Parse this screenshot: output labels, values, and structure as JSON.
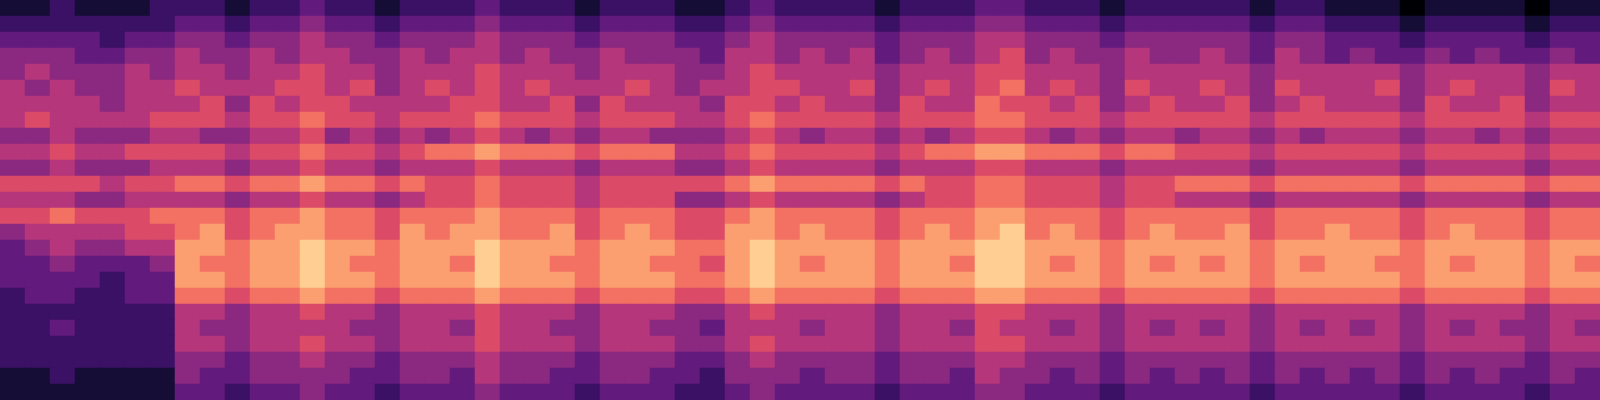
{
  "chart_data": {
    "type": "heatmap",
    "tick_labels": false,
    "grid": false,
    "value_range": [
      0,
      10
    ],
    "cells": [
      [
        1,
        1,
        2,
        1,
        1,
        1,
        2,
        2,
        2,
        1,
        2,
        2,
        3,
        2,
        2,
        1,
        2,
        2,
        2,
        3,
        2,
        2,
        2,
        1,
        2,
        2,
        2,
        1,
        1,
        2,
        3,
        2,
        2,
        2,
        2,
        1,
        2,
        2,
        2,
        3,
        3,
        2,
        2,
        2,
        1,
        2,
        2,
        2,
        2,
        2,
        1,
        2,
        2,
        1,
        1,
        1,
        0,
        1,
        1,
        1,
        1,
        0,
        1,
        1
      ],
      [
        2,
        2,
        2,
        2,
        2,
        2,
        2,
        3,
        3,
        2,
        3,
        3,
        4,
        3,
        3,
        2,
        3,
        3,
        3,
        4,
        3,
        3,
        3,
        2,
        3,
        3,
        3,
        2,
        2,
        3,
        4,
        3,
        3,
        3,
        3,
        2,
        3,
        3,
        3,
        4,
        4,
        3,
        3,
        3,
        2,
        3,
        3,
        3,
        3,
        3,
        2,
        3,
        3,
        2,
        2,
        2,
        1,
        2,
        2,
        2,
        2,
        1,
        2,
        2
      ],
      [
        3,
        3,
        3,
        3,
        2,
        3,
        3,
        4,
        4,
        3,
        4,
        4,
        5,
        4,
        4,
        3,
        4,
        4,
        4,
        5,
        4,
        4,
        4,
        3,
        4,
        4,
        4,
        3,
        3,
        4,
        5,
        4,
        4,
        4,
        4,
        3,
        4,
        4,
        4,
        5,
        5,
        4,
        4,
        4,
        3,
        4,
        4,
        4,
        4,
        4,
        3,
        4,
        4,
        3,
        3,
        3,
        2,
        3,
        3,
        3,
        3,
        2,
        3,
        3
      ],
      [
        4,
        4,
        4,
        3,
        3,
        4,
        4,
        5,
        4,
        4,
        5,
        4,
        5,
        5,
        4,
        4,
        5,
        4,
        5,
        5,
        4,
        5,
        4,
        4,
        5,
        4,
        4,
        4,
        3,
        5,
        5,
        4,
        5,
        4,
        5,
        3,
        4,
        5,
        4,
        5,
        6,
        4,
        5,
        4,
        4,
        5,
        4,
        4,
        5,
        4,
        3,
        5,
        4,
        3,
        4,
        3,
        3,
        4,
        3,
        4,
        3,
        3,
        4,
        3
      ],
      [
        4,
        5,
        4,
        4,
        4,
        5,
        4,
        5,
        5,
        4,
        5,
        5,
        6,
        5,
        5,
        4,
        5,
        5,
        5,
        6,
        5,
        5,
        5,
        4,
        5,
        5,
        5,
        4,
        4,
        5,
        6,
        5,
        5,
        5,
        5,
        4,
        5,
        5,
        5,
        6,
        6,
        5,
        5,
        5,
        4,
        5,
        5,
        5,
        5,
        5,
        4,
        5,
        5,
        5,
        5,
        5,
        4,
        5,
        5,
        5,
        5,
        4,
        5,
        5
      ],
      [
        5,
        4,
        5,
        4,
        4,
        5,
        5,
        6,
        5,
        5,
        5,
        6,
        6,
        5,
        6,
        4,
        5,
        6,
        5,
        6,
        5,
        6,
        5,
        5,
        5,
        6,
        5,
        4,
        5,
        5,
        6,
        6,
        5,
        5,
        6,
        4,
        5,
        6,
        5,
        6,
        7,
        5,
        6,
        5,
        4,
        6,
        5,
        5,
        6,
        5,
        4,
        6,
        5,
        5,
        5,
        6,
        4,
        5,
        6,
        5,
        5,
        4,
        6,
        5
      ],
      [
        5,
        5,
        5,
        5,
        4,
        5,
        5,
        5,
        6,
        4,
        6,
        5,
        6,
        6,
        5,
        5,
        5,
        5,
        6,
        6,
        5,
        5,
        6,
        4,
        6,
        5,
        5,
        5,
        4,
        6,
        6,
        5,
        6,
        5,
        5,
        4,
        6,
        5,
        5,
        7,
        6,
        6,
        5,
        6,
        4,
        5,
        6,
        5,
        5,
        6,
        4,
        5,
        6,
        5,
        5,
        5,
        4,
        6,
        5,
        5,
        6,
        4,
        5,
        5
      ],
      [
        5,
        6,
        5,
        5,
        5,
        5,
        6,
        6,
        6,
        5,
        6,
        6,
        7,
        6,
        6,
        5,
        6,
        6,
        6,
        7,
        6,
        6,
        6,
        5,
        6,
        6,
        6,
        5,
        5,
        6,
        7,
        6,
        6,
        6,
        6,
        5,
        6,
        6,
        6,
        7,
        7,
        6,
        6,
        6,
        5,
        6,
        6,
        6,
        6,
        6,
        5,
        6,
        6,
        6,
        6,
        6,
        5,
        6,
        6,
        6,
        6,
        5,
        6,
        6
      ],
      [
        4,
        4,
        5,
        4,
        4,
        4,
        5,
        5,
        4,
        4,
        5,
        5,
        6,
        4,
        5,
        4,
        5,
        4,
        5,
        6,
        5,
        4,
        5,
        4,
        5,
        5,
        4,
        4,
        4,
        5,
        6,
        5,
        4,
        5,
        5,
        4,
        5,
        4,
        5,
        6,
        6,
        5,
        4,
        5,
        4,
        5,
        5,
        4,
        5,
        5,
        4,
        5,
        4,
        5,
        5,
        5,
        4,
        5,
        5,
        4,
        5,
        4,
        5,
        5
      ],
      [
        5,
        5,
        6,
        5,
        5,
        6,
        6,
        6,
        6,
        5,
        6,
        6,
        7,
        6,
        6,
        5,
        6,
        7,
        7,
        8,
        7,
        7,
        7,
        6,
        7,
        7,
        7,
        5,
        5,
        6,
        7,
        6,
        6,
        6,
        6,
        5,
        6,
        7,
        7,
        8,
        8,
        7,
        7,
        7,
        6,
        7,
        7,
        6,
        6,
        6,
        5,
        6,
        6,
        6,
        6,
        6,
        5,
        6,
        6,
        6,
        6,
        5,
        6,
        6
      ],
      [
        4,
        4,
        5,
        4,
        4,
        4,
        5,
        5,
        5,
        4,
        5,
        5,
        6,
        5,
        5,
        4,
        5,
        5,
        5,
        6,
        5,
        5,
        5,
        4,
        5,
        5,
        5,
        4,
        4,
        5,
        6,
        5,
        5,
        5,
        5,
        4,
        5,
        5,
        5,
        6,
        6,
        5,
        5,
        5,
        4,
        5,
        5,
        5,
        5,
        5,
        4,
        5,
        5,
        5,
        5,
        5,
        4,
        5,
        5,
        5,
        5,
        4,
        5,
        5
      ],
      [
        6,
        6,
        6,
        6,
        5,
        6,
        6,
        7,
        7,
        6,
        7,
        7,
        8,
        7,
        7,
        6,
        7,
        6,
        6,
        7,
        6,
        6,
        6,
        5,
        6,
        6,
        6,
        6,
        6,
        7,
        8,
        7,
        7,
        7,
        7,
        6,
        7,
        6,
        6,
        7,
        7,
        6,
        6,
        6,
        5,
        6,
        6,
        7,
        7,
        7,
        6,
        7,
        7,
        7,
        7,
        7,
        6,
        7,
        7,
        7,
        7,
        6,
        7,
        7
      ],
      [
        5,
        5,
        5,
        4,
        4,
        5,
        5,
        5,
        5,
        4,
        5,
        5,
        6,
        5,
        5,
        4,
        5,
        6,
        6,
        7,
        6,
        6,
        6,
        5,
        6,
        6,
        6,
        4,
        4,
        5,
        6,
        5,
        5,
        5,
        5,
        4,
        5,
        6,
        6,
        7,
        7,
        6,
        6,
        6,
        5,
        6,
        6,
        5,
        5,
        5,
        4,
        5,
        5,
        5,
        5,
        5,
        4,
        5,
        5,
        5,
        5,
        4,
        5,
        5
      ],
      [
        6,
        6,
        7,
        6,
        6,
        6,
        7,
        7,
        7,
        6,
        7,
        7,
        8,
        7,
        7,
        6,
        7,
        7,
        7,
        8,
        7,
        7,
        7,
        6,
        7,
        7,
        7,
        6,
        6,
        7,
        8,
        7,
        7,
        7,
        7,
        6,
        7,
        7,
        7,
        8,
        8,
        7,
        7,
        7,
        6,
        7,
        7,
        7,
        7,
        7,
        6,
        7,
        7,
        7,
        7,
        7,
        6,
        7,
        7,
        7,
        7,
        6,
        7,
        7
      ],
      [
        4,
        5,
        5,
        5,
        5,
        6,
        6,
        7,
        8,
        6,
        7,
        8,
        8,
        7,
        7,
        6,
        8,
        7,
        8,
        8,
        7,
        7,
        8,
        6,
        7,
        8,
        7,
        6,
        6,
        8,
        8,
        7,
        8,
        7,
        7,
        6,
        7,
        8,
        7,
        8,
        9,
        7,
        8,
        7,
        6,
        7,
        8,
        7,
        7,
        8,
        6,
        7,
        7,
        8,
        7,
        7,
        6,
        7,
        8,
        7,
        7,
        6,
        7,
        7
      ],
      [
        3,
        4,
        5,
        4,
        4,
        5,
        5,
        8,
        8,
        7,
        8,
        8,
        9,
        8,
        8,
        7,
        8,
        8,
        8,
        9,
        8,
        8,
        8,
        7,
        8,
        8,
        8,
        7,
        7,
        8,
        9,
        8,
        8,
        8,
        8,
        7,
        8,
        8,
        8,
        9,
        9,
        8,
        8,
        8,
        7,
        8,
        8,
        8,
        8,
        8,
        7,
        8,
        8,
        8,
        8,
        8,
        7,
        8,
        8,
        8,
        8,
        7,
        8,
        8
      ],
      [
        3,
        3,
        4,
        3,
        3,
        3,
        4,
        8,
        7,
        7,
        8,
        8,
        9,
        8,
        7,
        7,
        8,
        8,
        7,
        9,
        8,
        8,
        7,
        7,
        8,
        8,
        7,
        7,
        6,
        8,
        9,
        8,
        7,
        8,
        8,
        7,
        8,
        8,
        7,
        9,
        9,
        8,
        7,
        8,
        7,
        8,
        7,
        8,
        7,
        8,
        7,
        8,
        7,
        8,
        8,
        7,
        7,
        8,
        7,
        8,
        8,
        7,
        8,
        7
      ],
      [
        3,
        3,
        3,
        3,
        2,
        3,
        3,
        8,
        8,
        7,
        8,
        8,
        9,
        8,
        8,
        7,
        8,
        8,
        8,
        9,
        8,
        8,
        8,
        7,
        8,
        8,
        8,
        7,
        7,
        8,
        9,
        8,
        8,
        8,
        8,
        7,
        8,
        8,
        8,
        9,
        9,
        8,
        8,
        8,
        7,
        8,
        8,
        8,
        8,
        8,
        7,
        8,
        8,
        8,
        8,
        8,
        7,
        8,
        8,
        8,
        8,
        7,
        8,
        8
      ],
      [
        2,
        3,
        3,
        2,
        2,
        3,
        3,
        7,
        7,
        6,
        7,
        7,
        8,
        7,
        7,
        6,
        7,
        7,
        7,
        8,
        7,
        7,
        7,
        6,
        7,
        7,
        7,
        6,
        6,
        7,
        8,
        7,
        7,
        7,
        7,
        6,
        7,
        7,
        7,
        8,
        8,
        7,
        7,
        7,
        6,
        7,
        7,
        7,
        7,
        7,
        6,
        7,
        7,
        7,
        7,
        7,
        6,
        7,
        7,
        7,
        7,
        6,
        7,
        7
      ],
      [
        2,
        2,
        2,
        2,
        2,
        2,
        2,
        5,
        5,
        4,
        5,
        5,
        6,
        5,
        5,
        4,
        5,
        5,
        5,
        6,
        5,
        5,
        5,
        4,
        5,
        5,
        5,
        4,
        4,
        5,
        6,
        5,
        5,
        5,
        5,
        4,
        5,
        5,
        5,
        6,
        6,
        5,
        5,
        5,
        4,
        5,
        5,
        5,
        5,
        5,
        4,
        5,
        5,
        5,
        5,
        5,
        4,
        5,
        5,
        5,
        5,
        4,
        5,
        5
      ],
      [
        2,
        2,
        3,
        2,
        2,
        2,
        2,
        5,
        4,
        4,
        5,
        5,
        5,
        5,
        4,
        4,
        5,
        5,
        4,
        6,
        5,
        5,
        4,
        4,
        5,
        5,
        4,
        4,
        3,
        5,
        5,
        5,
        4,
        5,
        5,
        4,
        5,
        5,
        4,
        6,
        5,
        5,
        4,
        5,
        4,
        5,
        4,
        5,
        4,
        5,
        4,
        5,
        4,
        5,
        4,
        5,
        4,
        5,
        4,
        5,
        4,
        4,
        5,
        4
      ],
      [
        2,
        2,
        2,
        2,
        2,
        2,
        2,
        5,
        5,
        4,
        5,
        5,
        6,
        5,
        5,
        4,
        5,
        5,
        5,
        6,
        5,
        5,
        5,
        4,
        5,
        5,
        5,
        4,
        4,
        5,
        6,
        5,
        5,
        5,
        5,
        4,
        5,
        5,
        5,
        6,
        6,
        5,
        5,
        5,
        4,
        5,
        5,
        5,
        5,
        5,
        4,
        5,
        5,
        5,
        5,
        5,
        4,
        5,
        5,
        5,
        5,
        4,
        5,
        5
      ],
      [
        2,
        2,
        2,
        2,
        2,
        2,
        2,
        4,
        4,
        3,
        4,
        4,
        5,
        4,
        4,
        3,
        4,
        4,
        4,
        5,
        4,
        4,
        4,
        3,
        4,
        4,
        4,
        3,
        3,
        4,
        5,
        4,
        4,
        4,
        4,
        3,
        4,
        4,
        4,
        5,
        5,
        4,
        4,
        4,
        3,
        4,
        4,
        4,
        4,
        4,
        3,
        4,
        4,
        4,
        4,
        4,
        3,
        4,
        4,
        4,
        4,
        3,
        4,
        4
      ],
      [
        1,
        1,
        2,
        1,
        1,
        1,
        1,
        4,
        3,
        3,
        4,
        4,
        4,
        4,
        3,
        3,
        4,
        4,
        3,
        5,
        4,
        4,
        3,
        3,
        4,
        4,
        3,
        3,
        2,
        4,
        4,
        4,
        3,
        4,
        4,
        3,
        4,
        4,
        3,
        5,
        4,
        4,
        3,
        4,
        3,
        4,
        3,
        4,
        3,
        4,
        3,
        4,
        3,
        4,
        3,
        4,
        3,
        4,
        3,
        4,
        3,
        3,
        4,
        3
      ],
      [
        1,
        1,
        1,
        1,
        1,
        1,
        1,
        3,
        3,
        2,
        3,
        3,
        4,
        3,
        3,
        2,
        3,
        3,
        3,
        4,
        3,
        3,
        3,
        2,
        3,
        3,
        3,
        2,
        2,
        3,
        4,
        3,
        3,
        3,
        3,
        2,
        3,
        3,
        3,
        4,
        4,
        3,
        3,
        3,
        2,
        3,
        3,
        3,
        3,
        3,
        2,
        3,
        3,
        3,
        3,
        3,
        2,
        3,
        3,
        3,
        3,
        2,
        3,
        3
      ]
    ]
  }
}
